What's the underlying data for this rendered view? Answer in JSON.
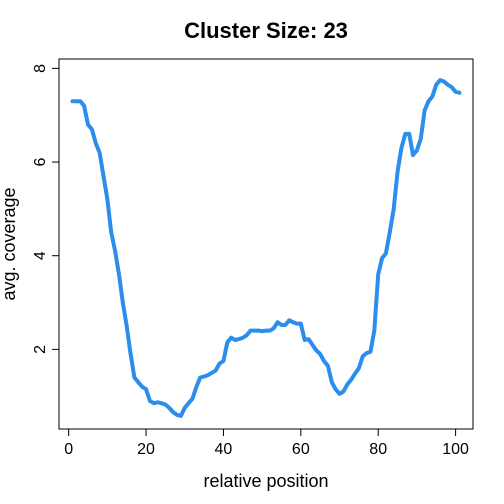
{
  "chart_data": {
    "type": "line",
    "title": "Cluster Size: 23",
    "xlabel": "relative position",
    "ylabel": "avg. coverage",
    "xlim": [
      -2.5,
      104.5
    ],
    "ylim": [
      0.3,
      8.2
    ],
    "xticks": [
      0,
      20,
      40,
      60,
      80,
      100
    ],
    "yticks": [
      2,
      4,
      6,
      8
    ],
    "grid": false,
    "series": [
      {
        "color": "#2b8ded",
        "x": [
          1,
          2,
          3,
          4,
          5,
          6,
          7,
          8,
          9,
          10,
          11,
          12,
          13,
          14,
          15,
          16,
          17,
          18,
          19,
          20,
          21,
          22,
          23,
          24,
          25,
          26,
          27,
          28,
          29,
          30,
          31,
          32,
          33,
          34,
          35,
          36,
          37,
          38,
          39,
          40,
          41,
          42,
          43,
          44,
          45,
          46,
          47,
          48,
          49,
          50,
          51,
          52,
          53,
          54,
          55,
          56,
          57,
          58,
          59,
          60,
          61,
          62,
          63,
          64,
          65,
          66,
          67,
          68,
          69,
          70,
          71,
          72,
          73,
          74,
          75,
          76,
          77,
          78,
          79,
          80,
          81,
          82,
          83,
          84,
          85,
          86,
          87,
          88,
          89,
          90,
          91,
          92,
          93,
          94,
          95,
          96,
          97,
          98,
          99,
          100,
          101
        ],
        "y": [
          7.3,
          7.3,
          7.3,
          7.2,
          6.8,
          6.7,
          6.4,
          6.2,
          5.7,
          5.2,
          4.5,
          4.1,
          3.6,
          3.0,
          2.5,
          1.9,
          1.4,
          1.3,
          1.2,
          1.15,
          0.9,
          0.85,
          0.87,
          0.85,
          0.82,
          0.75,
          0.66,
          0.6,
          0.58,
          0.75,
          0.85,
          0.95,
          1.2,
          1.4,
          1.42,
          1.45,
          1.5,
          1.55,
          1.7,
          1.75,
          2.15,
          2.25,
          2.2,
          2.22,
          2.25,
          2.3,
          2.4,
          2.4,
          2.4,
          2.39,
          2.4,
          2.4,
          2.45,
          2.58,
          2.52,
          2.52,
          2.62,
          2.58,
          2.55,
          2.55,
          2.2,
          2.22,
          2.1,
          1.98,
          1.9,
          1.75,
          1.65,
          1.3,
          1.15,
          1.05,
          1.1,
          1.25,
          1.35,
          1.48,
          1.6,
          1.85,
          1.92,
          1.95,
          2.4,
          3.6,
          3.95,
          4.05,
          4.5,
          5.0,
          5.8,
          6.3,
          6.6,
          6.6,
          6.15,
          6.25,
          6.5,
          7.1,
          7.3,
          7.4,
          7.65,
          7.75,
          7.72,
          7.65,
          7.6,
          7.5,
          7.48
        ]
      }
    ]
  }
}
